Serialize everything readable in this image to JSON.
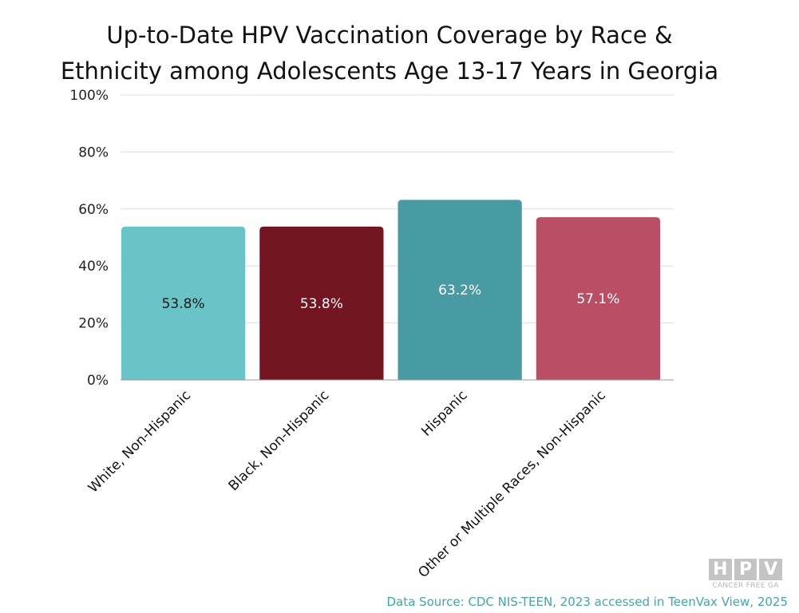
{
  "chart_data": {
    "type": "bar",
    "title_lines": [
      "Up-to-Date HPV Vaccination Coverage by Race &",
      "Ethnicity among Adolescents Age 13-17 Years in Georgia"
    ],
    "categories": [
      "White, Non-Hispanic",
      "Black, Non-Hispanic",
      "Hispanic",
      "Other or Multiple Races, Non-Hispanic"
    ],
    "values": [
      53.8,
      53.8,
      63.2,
      57.1
    ],
    "data_labels": [
      "53.8%",
      "53.8%",
      "63.2%",
      "57.1%"
    ],
    "bar_colors": [
      "#68c4c7",
      "#741522",
      "#489ba2",
      "#b94e65"
    ],
    "data_label_colors": [
      "#1a1a1a",
      "#ffffff",
      "#ffffff",
      "#ffffff"
    ],
    "ylim": [
      0,
      100
    ],
    "yticks": [
      0,
      20,
      40,
      60,
      80,
      100
    ],
    "ytick_labels": [
      "0%",
      "20%",
      "40%",
      "60%",
      "80%",
      "100%"
    ],
    "xlabel": "",
    "ylabel": "",
    "grid": true,
    "legend": "none"
  },
  "logo": {
    "letters": [
      "H",
      "P",
      "V"
    ],
    "subtitle": "CANCER FREE GA"
  },
  "source": "Data Source: CDC NIS-TEEN, 2023 accessed in TeenVax View, 2025",
  "colors": {
    "grid": "#dddddd",
    "axis": "#999999",
    "source_text": "#3ea8ad"
  }
}
